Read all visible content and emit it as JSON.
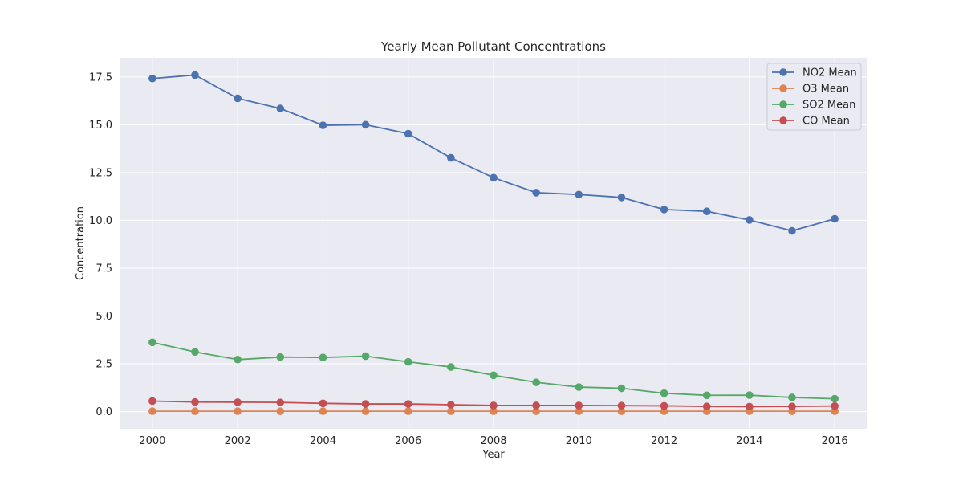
{
  "chart_data": {
    "type": "line",
    "title": "Yearly Mean Pollutant Concentrations",
    "xlabel": "Year",
    "ylabel": "Concentration",
    "x": [
      2000,
      2001,
      2002,
      2003,
      2004,
      2005,
      2006,
      2007,
      2008,
      2009,
      2010,
      2011,
      2012,
      2013,
      2014,
      2015,
      2016
    ],
    "xlim": [
      1999.25,
      2016.75
    ],
    "ylim": [
      -0.9,
      18.5
    ],
    "xticks": [
      2000,
      2002,
      2004,
      2006,
      2008,
      2010,
      2012,
      2014,
      2016
    ],
    "yticks": [
      0.0,
      2.5,
      5.0,
      7.5,
      10.0,
      12.5,
      15.0,
      17.5
    ],
    "ytick_labels": [
      "0.0",
      "2.5",
      "5.0",
      "7.5",
      "10.0",
      "12.5",
      "15.0",
      "17.5"
    ],
    "grid": true,
    "legend_position": "top-right",
    "series": [
      {
        "name": "NO2 Mean",
        "color": "#4c72b0",
        "values": [
          17.42,
          17.6,
          16.38,
          15.85,
          14.97,
          15.0,
          14.53,
          13.27,
          12.23,
          11.45,
          11.35,
          11.2,
          10.57,
          10.47,
          10.02,
          9.45,
          10.08
        ]
      },
      {
        "name": "O3 Mean",
        "color": "#dd8452",
        "values": [
          0.02,
          0.02,
          0.02,
          0.02,
          0.02,
          0.02,
          0.02,
          0.02,
          0.02,
          0.02,
          0.02,
          0.02,
          0.02,
          0.02,
          0.02,
          0.02,
          0.02
        ]
      },
      {
        "name": "SO2 Mean",
        "color": "#55a868",
        "values": [
          3.62,
          3.12,
          2.72,
          2.85,
          2.83,
          2.9,
          2.6,
          2.33,
          1.9,
          1.53,
          1.28,
          1.22,
          0.96,
          0.85,
          0.86,
          0.74,
          0.67
        ]
      },
      {
        "name": "CO Mean",
        "color": "#c44e52",
        "values": [
          0.55,
          0.5,
          0.49,
          0.48,
          0.43,
          0.4,
          0.4,
          0.36,
          0.32,
          0.32,
          0.32,
          0.31,
          0.3,
          0.27,
          0.26,
          0.27,
          0.29
        ]
      }
    ]
  }
}
